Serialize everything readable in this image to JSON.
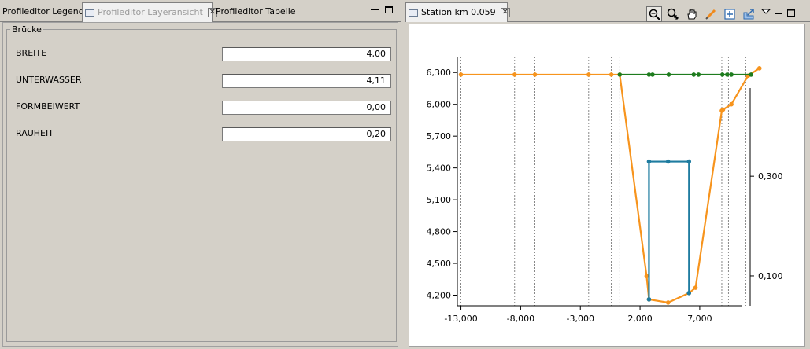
{
  "left": {
    "tabs": [
      {
        "label": "Profileditor Legende"
      },
      {
        "label": "Profileditor Layeransicht"
      },
      {
        "label": "Profileditor Tabelle"
      }
    ],
    "group_title": "Brücke",
    "fields": [
      {
        "label": "BREITE",
        "value": "4,00"
      },
      {
        "label": "UNTERWASSER",
        "value": "4,11"
      },
      {
        "label": "FORMBEIWERT",
        "value": "0,00"
      },
      {
        "label": "RAUHEIT",
        "value": "0,20"
      }
    ]
  },
  "right": {
    "tab_label": "Station km 0.059",
    "toolbar_icons": [
      "zoom-out-icon",
      "zoom-in-icon",
      "pan-hand-icon",
      "edit-pencil-icon",
      "add-point-icon",
      "export-icon",
      "view-menu-icon"
    ]
  },
  "colors": {
    "ground": "#f7941d",
    "bridge": "#1f7ca0",
    "green": "#1e7c1e"
  },
  "chart_data": {
    "type": "line",
    "x_ticks": [
      -13000,
      -8000,
      -3000,
      2000,
      7000
    ],
    "x_tick_labels": [
      "-13,000",
      "-8,000",
      "-3,000",
      "2,000",
      "7,000"
    ],
    "y_ticks": [
      4.2,
      4.5,
      4.8,
      5.1,
      5.4,
      5.7,
      6.0,
      6.3
    ],
    "y_tick_labels": [
      "4,200",
      "4,500",
      "4,800",
      "5,100",
      "5,400",
      "5,700",
      "6,000",
      "6,300"
    ],
    "y2_ticks": [
      0.1,
      0.3
    ],
    "y2_tick_labels": [
      "0,100",
      "0,300"
    ],
    "xlim": [
      -13300,
      10500
    ],
    "ylim": [
      4.1,
      6.45
    ],
    "y2lim": [
      0.04,
      0.54
    ],
    "vertical_markers": [
      -13000,
      -8500,
      -6800,
      -2300,
      -400,
      300,
      8850,
      8950,
      9400,
      10850
    ],
    "series": [
      {
        "color_key": "ground",
        "points": [
          [
            -13000,
            6.28
          ],
          [
            -8500,
            6.28
          ],
          [
            -6800,
            6.28
          ],
          [
            -2300,
            6.28
          ],
          [
            -400,
            6.28
          ],
          [
            300,
            6.28
          ],
          [
            2550,
            4.38
          ],
          [
            2750,
            4.16
          ],
          [
            4350,
            4.13
          ],
          [
            6100,
            4.22
          ],
          [
            6650,
            4.27
          ],
          [
            8850,
            5.94
          ],
          [
            8950,
            5.95
          ],
          [
            9650,
            6.0
          ],
          [
            11050,
            6.27
          ],
          [
            12000,
            6.34
          ]
        ]
      },
      {
        "color_key": "green",
        "points": [
          [
            300,
            6.28
          ],
          [
            2750,
            6.28
          ],
          [
            3050,
            6.28
          ],
          [
            4400,
            6.28
          ],
          [
            6500,
            6.28
          ],
          [
            6900,
            6.28
          ],
          [
            8900,
            6.28
          ],
          [
            9300,
            6.28
          ],
          [
            9650,
            6.28
          ],
          [
            11300,
            6.28
          ]
        ]
      },
      {
        "color_key": "bridge",
        "points": [
          [
            2750,
            4.16
          ],
          [
            2750,
            5.46
          ],
          [
            4350,
            5.46
          ],
          [
            6100,
            5.46
          ],
          [
            6100,
            4.22
          ]
        ]
      }
    ]
  }
}
